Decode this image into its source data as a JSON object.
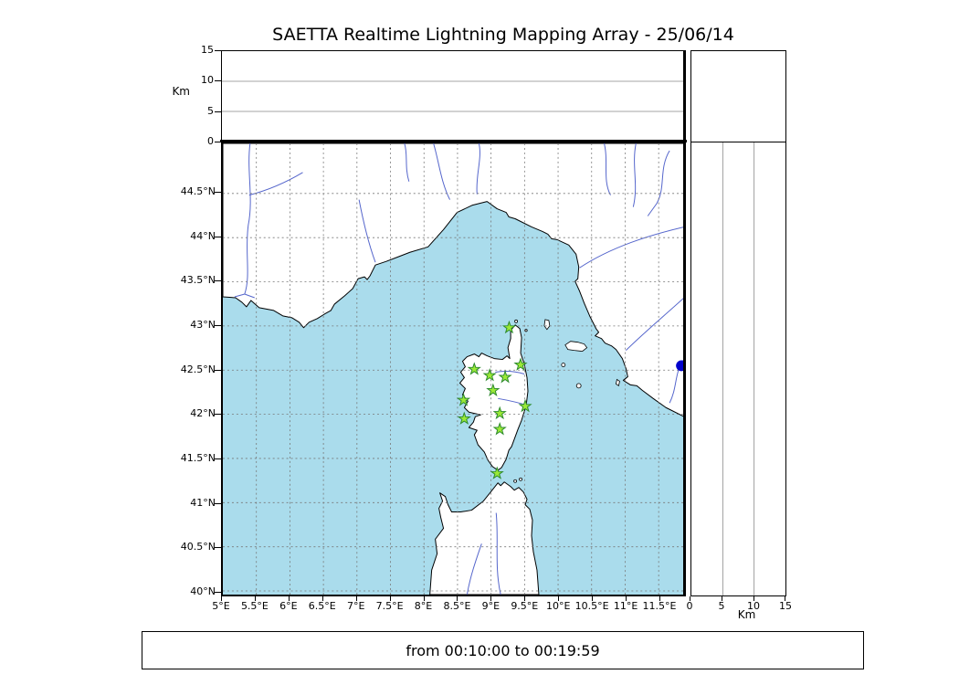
{
  "title": "SAETTA Realtime Lightning Mapping Array - 25/06/14",
  "status_text": "from 00:10:00 to 00:19:59",
  "axes": {
    "altitude_label": "Km",
    "altitude_ticks": [
      0,
      5,
      10,
      15
    ],
    "altitude_gridlines": [
      5,
      10
    ],
    "lon_ticks": [
      {
        "value": 5,
        "label": "5°E"
      },
      {
        "value": 5.5,
        "label": "5.5°E"
      },
      {
        "value": 6,
        "label": "6°E"
      },
      {
        "value": 6.5,
        "label": "6.5°E"
      },
      {
        "value": 7,
        "label": "7°E"
      },
      {
        "value": 7.5,
        "label": "7.5°E"
      },
      {
        "value": 8,
        "label": "8°E"
      },
      {
        "value": 8.5,
        "label": "8.5°E"
      },
      {
        "value": 9,
        "label": "9°E"
      },
      {
        "value": 9.5,
        "label": "9.5°E"
      },
      {
        "value": 10,
        "label": "10°E"
      },
      {
        "value": 10.5,
        "label": "10.5°E"
      },
      {
        "value": 11,
        "label": "11°E"
      },
      {
        "value": 11.5,
        "label": "11.5°E"
      }
    ],
    "lat_ticks": [
      {
        "value": 44.5,
        "label": "44.5°N"
      },
      {
        "value": 44,
        "label": "44°N"
      },
      {
        "value": 43.5,
        "label": "43.5°N"
      },
      {
        "value": 43,
        "label": "43°N"
      },
      {
        "value": 42.5,
        "label": "42.5°N"
      },
      {
        "value": 42,
        "label": "42°N"
      },
      {
        "value": 41.5,
        "label": "41.5°N"
      },
      {
        "value": 41,
        "label": "41°N"
      },
      {
        "value": 40.5,
        "label": "40.5°N"
      },
      {
        "value": 40,
        "label": "40°N"
      }
    ]
  },
  "colors": {
    "sea": "#aadcec",
    "land": "#ffffff",
    "coastline": "#000000",
    "river": "#5566cc",
    "grid": "#777777",
    "station_fill": "#9be937",
    "station_edge": "#2d8a2d",
    "point": "#0000cc"
  },
  "chart_data": {
    "type": "scatter",
    "title": "SAETTA Realtime Lightning Mapping Array - 25/06/14",
    "time_window": {
      "from": "00:10:00",
      "to": "00:19:59"
    },
    "map_panel": {
      "region": "Corsica / NW Mediterranean",
      "xlim": [
        5,
        11.88
      ],
      "ylim": [
        39.96,
        45.07
      ],
      "x_tick_values": [
        5,
        5.5,
        6,
        6.5,
        7,
        7.5,
        8,
        8.5,
        9,
        9.5,
        10,
        10.5,
        11,
        11.5
      ],
      "y_tick_values": [
        40,
        40.5,
        41,
        41.5,
        42,
        42.5,
        43,
        43.5,
        44,
        44.5
      ],
      "grid": "dashed"
    },
    "altitude_panels": {
      "label": "Km",
      "lim": [
        0,
        15
      ],
      "ticks": [
        0,
        5,
        10,
        15
      ],
      "gridlines": [
        5,
        10
      ]
    },
    "stations": [
      {
        "lon": 9.27,
        "lat": 42.98
      },
      {
        "lon": 8.75,
        "lat": 42.51
      },
      {
        "lon": 9.44,
        "lat": 42.56
      },
      {
        "lon": 8.98,
        "lat": 42.44
      },
      {
        "lon": 9.21,
        "lat": 42.42
      },
      {
        "lon": 9.03,
        "lat": 42.27
      },
      {
        "lon": 8.59,
        "lat": 42.16
      },
      {
        "lon": 9.51,
        "lat": 42.09
      },
      {
        "lon": 8.6,
        "lat": 41.95
      },
      {
        "lon": 9.13,
        "lat": 42.01
      },
      {
        "lon": 9.13,
        "lat": 41.83
      },
      {
        "lon": 9.09,
        "lat": 41.33
      }
    ],
    "points": [
      {
        "lon": 11.84,
        "lat": 42.55
      }
    ]
  }
}
